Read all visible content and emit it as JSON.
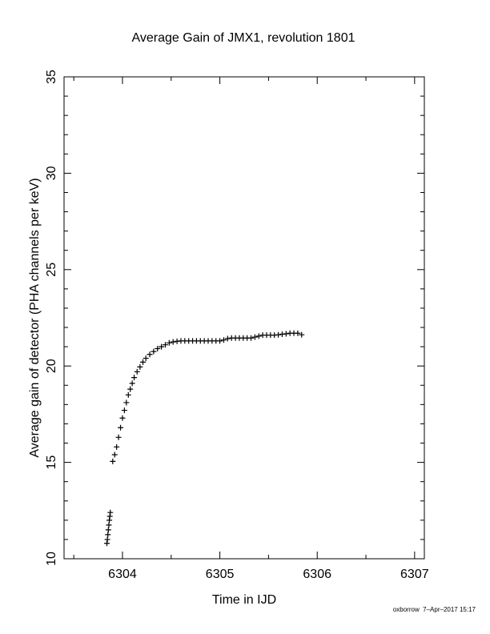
{
  "chart_data": {
    "type": "scatter",
    "title": "Average Gain of JMX1, revolution 1801",
    "xlabel": "Time in IJD",
    "ylabel": "Average gain of detector (PHA channels per keV)",
    "xlim": [
      6303.4,
      6307.1
    ],
    "ylim": [
      10,
      35
    ],
    "xticks": [
      6304,
      6305,
      6306,
      6307
    ],
    "yticks": [
      10,
      15,
      20,
      25,
      30,
      35
    ],
    "xtick_labels": [
      "6304",
      "6305",
      "6306",
      "6307"
    ],
    "ytick_labels": [
      "10",
      "15",
      "20",
      "25",
      "30",
      "35"
    ],
    "marker": "plus",
    "grid": false,
    "points": [
      [
        6303.84,
        10.8
      ],
      [
        6303.845,
        11.0
      ],
      [
        6303.85,
        11.25
      ],
      [
        6303.855,
        11.5
      ],
      [
        6303.86,
        11.75
      ],
      [
        6303.865,
        12.0
      ],
      [
        6303.87,
        12.2
      ],
      [
        6303.875,
        12.4
      ],
      [
        6303.9,
        15.05
      ],
      [
        6303.92,
        15.4
      ],
      [
        6303.94,
        15.8
      ],
      [
        6303.96,
        16.3
      ],
      [
        6303.98,
        16.8
      ],
      [
        6304.0,
        17.3
      ],
      [
        6304.02,
        17.7
      ],
      [
        6304.04,
        18.1
      ],
      [
        6304.06,
        18.5
      ],
      [
        6304.08,
        18.8
      ],
      [
        6304.1,
        19.1
      ],
      [
        6304.12,
        19.4
      ],
      [
        6304.15,
        19.7
      ],
      [
        6304.18,
        19.95
      ],
      [
        6304.21,
        20.2
      ],
      [
        6304.24,
        20.4
      ],
      [
        6304.28,
        20.6
      ],
      [
        6304.32,
        20.75
      ],
      [
        6304.36,
        20.9
      ],
      [
        6304.4,
        21.0
      ],
      [
        6304.44,
        21.1
      ],
      [
        6304.48,
        21.2
      ],
      [
        6304.52,
        21.25
      ],
      [
        6304.56,
        21.28
      ],
      [
        6304.6,
        21.3
      ],
      [
        6304.64,
        21.3
      ],
      [
        6304.68,
        21.3
      ],
      [
        6304.72,
        21.3
      ],
      [
        6304.76,
        21.3
      ],
      [
        6304.8,
        21.3
      ],
      [
        6304.84,
        21.3
      ],
      [
        6304.88,
        21.3
      ],
      [
        6304.92,
        21.3
      ],
      [
        6304.96,
        21.3
      ],
      [
        6305.0,
        21.3
      ],
      [
        6305.04,
        21.35
      ],
      [
        6305.08,
        21.42
      ],
      [
        6305.12,
        21.45
      ],
      [
        6305.16,
        21.45
      ],
      [
        6305.2,
        21.45
      ],
      [
        6305.24,
        21.45
      ],
      [
        6305.28,
        21.45
      ],
      [
        6305.32,
        21.45
      ],
      [
        6305.36,
        21.5
      ],
      [
        6305.4,
        21.55
      ],
      [
        6305.44,
        21.6
      ],
      [
        6305.48,
        21.6
      ],
      [
        6305.52,
        21.6
      ],
      [
        6305.56,
        21.6
      ],
      [
        6305.6,
        21.62
      ],
      [
        6305.64,
        21.65
      ],
      [
        6305.68,
        21.67
      ],
      [
        6305.72,
        21.7
      ],
      [
        6305.76,
        21.7
      ],
      [
        6305.8,
        21.7
      ],
      [
        6305.84,
        21.62
      ]
    ]
  },
  "footer": "oxborrow  7–Apr–2017 15:17"
}
